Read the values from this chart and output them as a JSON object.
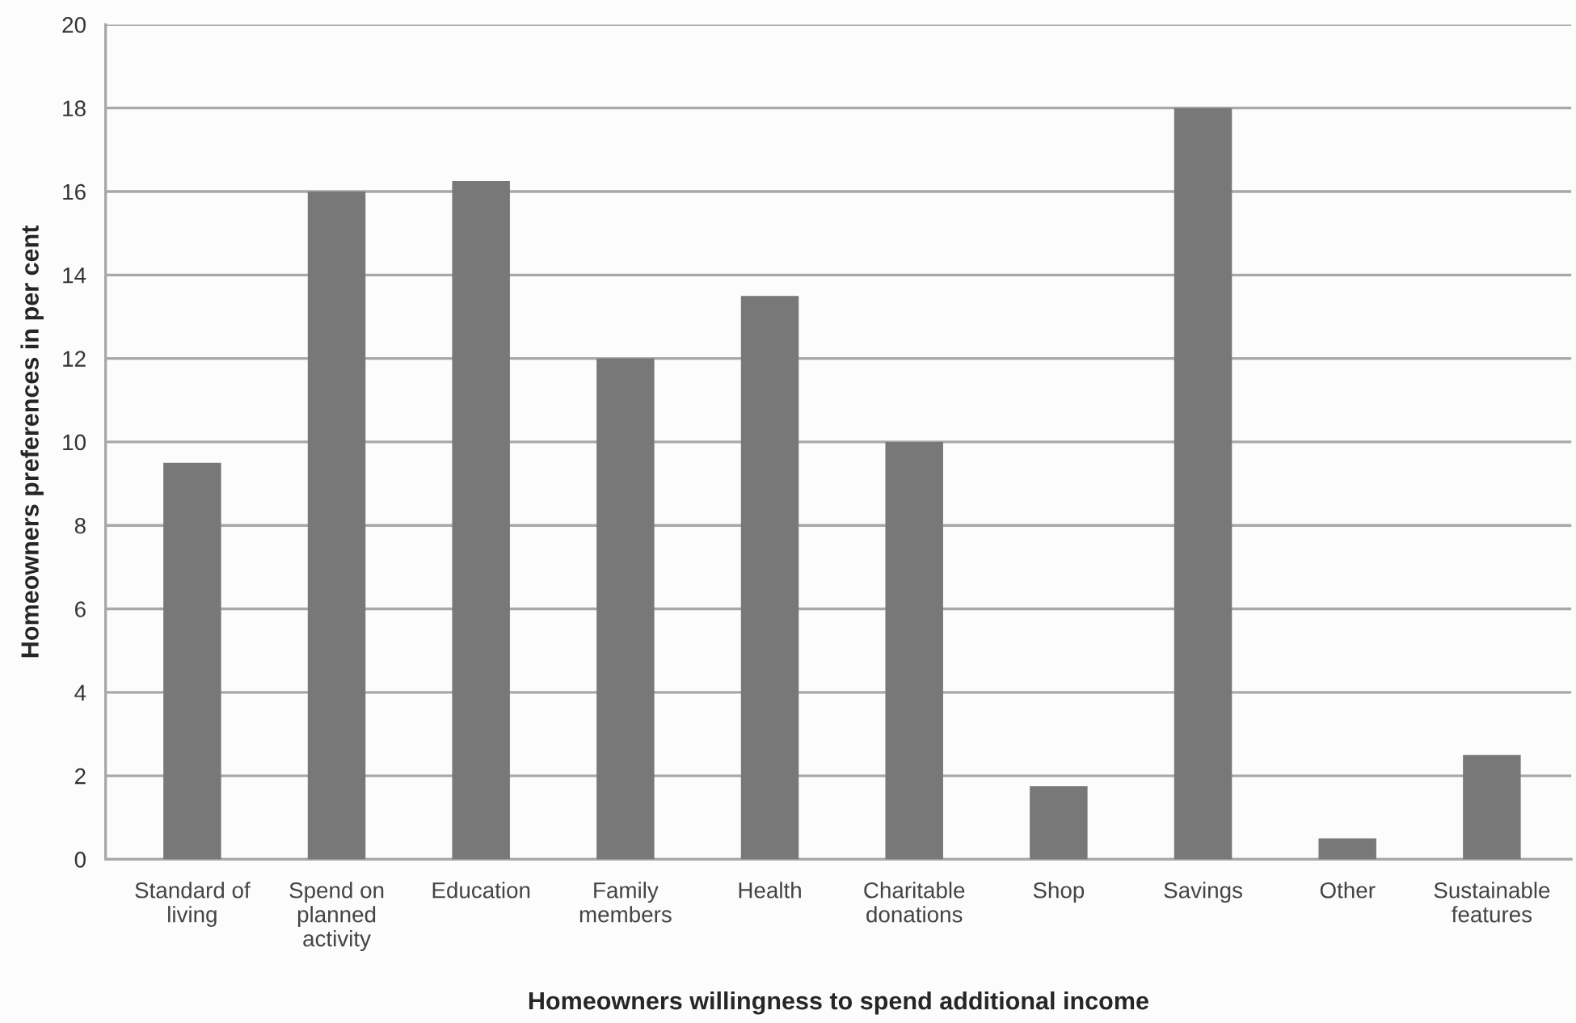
{
  "chart_data": {
    "type": "bar",
    "xlabel": "Homeowners willingness to spend additional income",
    "ylabel": "Homeowners preferences in per cent",
    "categories": [
      "Standard of\nliving",
      "Spend on\nplanned\nactivity",
      "Education",
      "Family\nmembers",
      "Health",
      "Charitable\ndonations",
      "Shop",
      "Savings",
      "Other",
      "Sustainable\nfeatures"
    ],
    "values": [
      9.5,
      16,
      16.25,
      12,
      13.5,
      10,
      1.75,
      18,
      0.5,
      2.5
    ],
    "color": "#787878",
    "ylim": [
      0,
      20
    ],
    "yticks": [
      0,
      2,
      4,
      6,
      8,
      10,
      12,
      14,
      16,
      18,
      20
    ],
    "grid": "y",
    "legend": false
  }
}
